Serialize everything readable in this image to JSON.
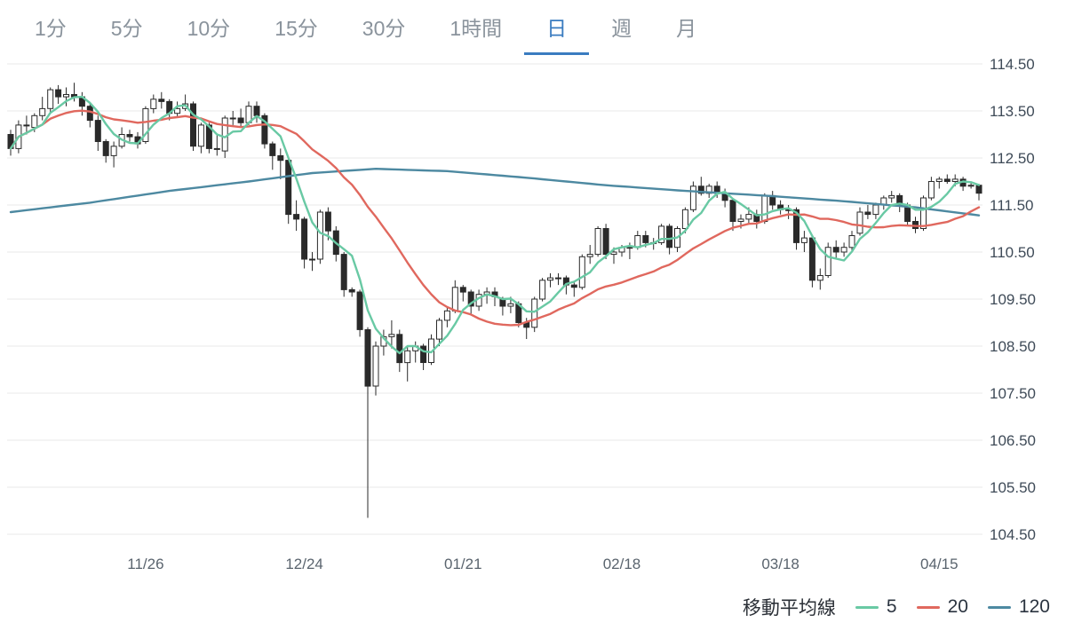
{
  "tabs": {
    "selected": "日",
    "items": [
      {
        "label": "1分"
      },
      {
        "label": "5分"
      },
      {
        "label": "10分"
      },
      {
        "label": "15分"
      },
      {
        "label": "30分"
      },
      {
        "label": "1時間"
      },
      {
        "label": "日"
      },
      {
        "label": "週"
      },
      {
        "label": "月"
      }
    ]
  },
  "legend": {
    "title": "移動平均線",
    "items": [
      {
        "label": "5",
        "color": "#69c9a4"
      },
      {
        "label": "20",
        "color": "#e0685e"
      },
      {
        "label": "120",
        "color": "#4d89a1"
      }
    ]
  },
  "chart_data": {
    "type": "candlestick",
    "timeframe": "daily",
    "ylim": [
      104.5,
      114.5
    ],
    "grid": "horizontal",
    "y_ticks": [
      "114.50",
      "113.50",
      "112.50",
      "111.50",
      "110.50",
      "109.50",
      "108.50",
      "107.50",
      "106.50",
      "105.50",
      "104.50"
    ],
    "x_ticks": [
      {
        "index": 17,
        "label": "11/26"
      },
      {
        "index": 37,
        "label": "12/24"
      },
      {
        "index": 57,
        "label": "01/21"
      },
      {
        "index": 77,
        "label": "02/18"
      },
      {
        "index": 97,
        "label": "03/18"
      },
      {
        "index": 117,
        "label": "04/15"
      }
    ],
    "colors": {
      "up": "#ffffff",
      "down": "#2a2a2a",
      "wick": "#2a2a2a",
      "grid": "#e9e9e9",
      "y_axis_text": "#3f4b58",
      "x_axis_text": "#5a646e",
      "ma5": "#69c9a4",
      "ma20": "#e0685e",
      "ma120": "#4d89a1"
    },
    "moving_averages": {
      "ma5_window": 5,
      "ma20_window": 20,
      "ma120_points": [
        [
          0,
          111.35
        ],
        [
          10,
          111.55
        ],
        [
          20,
          111.8
        ],
        [
          30,
          112.0
        ],
        [
          38,
          112.18
        ],
        [
          46,
          112.27
        ],
        [
          55,
          112.22
        ],
        [
          65,
          112.08
        ],
        [
          75,
          111.92
        ],
        [
          85,
          111.8
        ],
        [
          95,
          111.7
        ],
        [
          105,
          111.58
        ],
        [
          114,
          111.45
        ],
        [
          122,
          111.28
        ]
      ]
    },
    "candles": [
      [
        "11/01",
        113.0,
        113.1,
        112.55,
        112.7
      ],
      [
        "11/02",
        112.7,
        113.3,
        112.6,
        113.2
      ],
      [
        "11/05",
        113.2,
        113.4,
        113.0,
        113.2
      ],
      [
        "11/06",
        113.15,
        113.45,
        113.05,
        113.4
      ],
      [
        "11/07",
        113.4,
        113.8,
        113.3,
        113.55
      ],
      [
        "11/08",
        113.55,
        114.0,
        113.45,
        113.95
      ],
      [
        "11/09",
        113.95,
        114.05,
        113.65,
        113.8
      ],
      [
        "11/12",
        113.8,
        114.0,
        113.6,
        113.85
      ],
      [
        "11/13",
        113.85,
        114.1,
        113.7,
        113.8
      ],
      [
        "11/14",
        113.8,
        113.9,
        113.4,
        113.6
      ],
      [
        "11/15",
        113.6,
        113.65,
        113.15,
        113.3
      ],
      [
        "11/16",
        113.3,
        113.4,
        112.65,
        112.85
      ],
      [
        "11/19",
        112.85,
        112.9,
        112.4,
        112.55
      ],
      [
        "11/20",
        112.55,
        112.85,
        112.3,
        112.75
      ],
      [
        "11/21",
        112.75,
        113.15,
        112.7,
        113.0
      ],
      [
        "11/22",
        113.0,
        113.1,
        112.85,
        112.95
      ],
      [
        "11/23",
        112.95,
        113.05,
        112.7,
        112.8
      ],
      [
        "11/26",
        112.85,
        113.6,
        112.8,
        113.55
      ],
      [
        "11/27",
        113.55,
        113.85,
        113.45,
        113.75
      ],
      [
        "11/28",
        113.75,
        113.9,
        113.55,
        113.7
      ],
      [
        "11/29",
        113.7,
        113.75,
        113.3,
        113.45
      ],
      [
        "11/30",
        113.45,
        113.7,
        113.35,
        113.55
      ],
      [
        "12/03",
        113.55,
        113.85,
        113.5,
        113.65
      ],
      [
        "12/04",
        113.65,
        113.7,
        112.65,
        112.75
      ],
      [
        "12/05",
        112.75,
        113.25,
        112.6,
        113.2
      ],
      [
        "12/06",
        113.2,
        113.25,
        112.6,
        112.7
      ],
      [
        "12/07",
        112.7,
        113.0,
        112.55,
        112.7
      ],
      [
        "12/10",
        112.65,
        113.4,
        112.5,
        113.35
      ],
      [
        "12/11",
        113.35,
        113.5,
        113.2,
        113.35
      ],
      [
        "12/12",
        113.35,
        113.55,
        113.15,
        113.25
      ],
      [
        "12/13",
        113.25,
        113.7,
        113.2,
        113.6
      ],
      [
        "12/14",
        113.6,
        113.7,
        113.25,
        113.4
      ],
      [
        "12/17",
        113.4,
        113.45,
        112.7,
        112.8
      ],
      [
        "12/18",
        112.8,
        112.85,
        112.25,
        112.55
      ],
      [
        "12/19",
        112.55,
        112.7,
        112.05,
        112.45
      ],
      [
        "12/20",
        112.45,
        112.5,
        111.1,
        111.3
      ],
      [
        "12/21",
        111.3,
        111.6,
        110.95,
        111.2
      ],
      [
        "12/24",
        111.2,
        111.25,
        110.15,
        110.35
      ],
      [
        "12/25",
        110.35,
        110.5,
        110.1,
        110.35
      ],
      [
        "12/26",
        110.35,
        111.4,
        110.25,
        111.35
      ],
      [
        "12/27",
        111.35,
        111.45,
        110.75,
        110.95
      ],
      [
        "12/28",
        110.95,
        111.05,
        110.3,
        110.45
      ],
      [
        "12/31",
        110.45,
        110.5,
        109.55,
        109.7
      ],
      [
        "01/01",
        109.7,
        109.75,
        109.55,
        109.65
      ],
      [
        "01/02",
        109.65,
        109.7,
        108.7,
        108.85
      ],
      [
        "01/03",
        108.85,
        108.9,
        104.85,
        107.65
      ],
      [
        "01/04",
        107.65,
        108.6,
        107.45,
        108.5
      ],
      [
        "01/07",
        108.5,
        108.85,
        108.3,
        108.7
      ],
      [
        "01/08",
        108.7,
        109.05,
        108.45,
        108.75
      ],
      [
        "01/09",
        108.75,
        108.85,
        107.95,
        108.15
      ],
      [
        "01/10",
        108.15,
        108.5,
        107.75,
        108.4
      ],
      [
        "01/11",
        108.4,
        108.6,
        108.15,
        108.5
      ],
      [
        "01/14",
        108.5,
        108.55,
        107.99,
        108.15
      ],
      [
        "01/15",
        108.15,
        108.75,
        108.1,
        108.65
      ],
      [
        "01/16",
        108.65,
        109.1,
        108.5,
        109.05
      ],
      [
        "01/17",
        109.05,
        109.35,
        108.9,
        109.25
      ],
      [
        "01/18",
        109.25,
        109.9,
        109.2,
        109.75
      ],
      [
        "01/21",
        109.75,
        109.8,
        109.45,
        109.65
      ],
      [
        "01/22",
        109.65,
        109.7,
        109.15,
        109.35
      ],
      [
        "01/23",
        109.35,
        109.7,
        109.25,
        109.6
      ],
      [
        "01/24",
        109.6,
        109.75,
        109.4,
        109.65
      ],
      [
        "01/25",
        109.65,
        109.75,
        109.35,
        109.55
      ],
      [
        "01/28",
        109.5,
        109.55,
        109.15,
        109.35
      ],
      [
        "01/29",
        109.35,
        109.55,
        109.2,
        109.4
      ],
      [
        "01/30",
        109.4,
        109.45,
        108.9,
        109.0
      ],
      [
        "01/31",
        109.0,
        109.1,
        108.65,
        108.9
      ],
      [
        "02/01",
        108.9,
        109.55,
        108.8,
        109.5
      ],
      [
        "02/04",
        109.5,
        109.95,
        109.45,
        109.9
      ],
      [
        "02/05",
        109.9,
        110.05,
        109.75,
        109.95
      ],
      [
        "02/06",
        109.95,
        110.05,
        109.8,
        109.95
      ],
      [
        "02/07",
        109.95,
        110.0,
        109.6,
        109.8
      ],
      [
        "02/08",
        109.8,
        109.85,
        109.55,
        109.75
      ],
      [
        "02/11",
        109.75,
        110.45,
        109.7,
        110.4
      ],
      [
        "02/12",
        110.4,
        110.65,
        110.25,
        110.45
      ],
      [
        "02/13",
        110.45,
        111.05,
        110.4,
        111.0
      ],
      [
        "02/14",
        111.0,
        111.1,
        110.35,
        110.45
      ],
      [
        "02/15",
        110.45,
        110.6,
        110.25,
        110.5
      ],
      [
        "02/18",
        110.5,
        110.65,
        110.4,
        110.6
      ],
      [
        "02/19",
        110.6,
        110.7,
        110.35,
        110.6
      ],
      [
        "02/20",
        110.6,
        110.95,
        110.55,
        110.85
      ],
      [
        "02/21",
        110.85,
        110.95,
        110.6,
        110.7
      ],
      [
        "02/22",
        110.7,
        110.8,
        110.55,
        110.7
      ],
      [
        "02/25",
        110.7,
        111.1,
        110.65,
        111.05
      ],
      [
        "02/26",
        111.05,
        111.1,
        110.45,
        110.6
      ],
      [
        "02/27",
        110.6,
        111.05,
        110.5,
        111.0
      ],
      [
        "02/28",
        111.0,
        111.45,
        110.9,
        111.4
      ],
      [
        "03/01",
        111.4,
        112.0,
        111.35,
        111.9
      ],
      [
        "03/04",
        111.9,
        112.1,
        111.7,
        111.75
      ],
      [
        "03/05",
        111.75,
        111.95,
        111.65,
        111.9
      ],
      [
        "03/06",
        111.9,
        112.0,
        111.65,
        111.75
      ],
      [
        "03/07",
        111.75,
        111.85,
        111.45,
        111.6
      ],
      [
        "03/08",
        111.6,
        111.65,
        110.95,
        111.15
      ],
      [
        "03/11",
        111.15,
        111.3,
        111.0,
        111.2
      ],
      [
        "03/12",
        111.2,
        111.45,
        111.1,
        111.3
      ],
      [
        "03/13",
        111.3,
        111.4,
        111.0,
        111.15
      ],
      [
        "03/14",
        111.15,
        111.75,
        111.1,
        111.7
      ],
      [
        "03/15",
        111.7,
        111.8,
        111.4,
        111.5
      ],
      [
        "03/18",
        111.5,
        111.6,
        111.3,
        111.4
      ],
      [
        "03/19",
        111.4,
        111.5,
        111.2,
        111.4
      ],
      [
        "03/20",
        111.4,
        111.45,
        110.55,
        110.7
      ],
      [
        "03/21",
        110.7,
        110.95,
        110.5,
        110.8
      ],
      [
        "03/22",
        110.8,
        110.85,
        109.75,
        109.9
      ],
      [
        "03/25",
        109.9,
        110.15,
        109.7,
        110.0
      ],
      [
        "03/26",
        110.0,
        110.7,
        109.95,
        110.6
      ],
      [
        "03/27",
        110.6,
        110.75,
        110.35,
        110.5
      ],
      [
        "03/28",
        110.5,
        110.7,
        110.4,
        110.6
      ],
      [
        "03/29",
        110.6,
        110.95,
        110.5,
        110.85
      ],
      [
        "04/01",
        110.9,
        111.45,
        110.85,
        111.35
      ],
      [
        "04/02",
        111.35,
        111.5,
        111.2,
        111.3
      ],
      [
        "04/03",
        111.3,
        111.55,
        111.2,
        111.5
      ],
      [
        "04/04",
        111.5,
        111.7,
        111.4,
        111.65
      ],
      [
        "04/05",
        111.65,
        111.8,
        111.55,
        111.7
      ],
      [
        "04/08",
        111.7,
        111.75,
        111.35,
        111.5
      ],
      [
        "04/09",
        111.5,
        111.55,
        111.05,
        111.15
      ],
      [
        "04/10",
        111.15,
        111.25,
        110.9,
        111.0
      ],
      [
        "04/11",
        111.0,
        111.7,
        110.95,
        111.65
      ],
      [
        "04/12",
        111.65,
        112.1,
        111.6,
        112.0
      ],
      [
        "04/15",
        112.0,
        112.1,
        111.85,
        112.05
      ],
      [
        "04/16",
        112.05,
        112.15,
        111.95,
        112.0
      ],
      [
        "04/17",
        112.0,
        112.15,
        111.9,
        112.05
      ],
      [
        "04/18",
        112.05,
        112.1,
        111.8,
        111.9
      ],
      [
        "04/19",
        111.9,
        112.0,
        111.85,
        111.92
      ],
      [
        "04/22",
        111.92,
        111.95,
        111.6,
        111.75
      ]
    ]
  }
}
